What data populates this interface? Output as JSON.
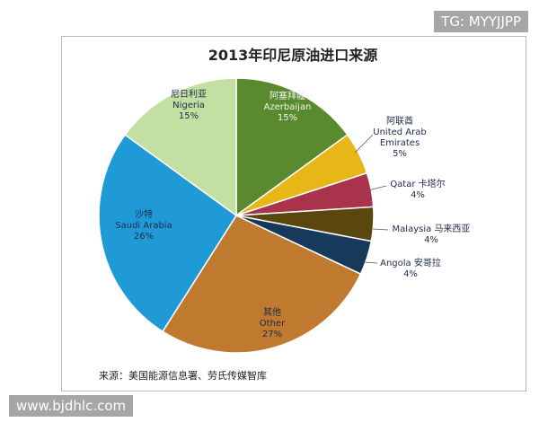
{
  "chart_data": {
    "type": "pie",
    "title": "2013年印尼原油进口来源",
    "categories": [
      "Azerbaijan",
      "United Arab Emirates",
      "Qatar",
      "Malaysia",
      "Angola",
      "Other",
      "Saudi Arabia",
      "Nigeria"
    ],
    "categories_zh": [
      "阿塞拜疆",
      "阿联酋",
      "卡塔尔",
      "马来西亚",
      "安哥拉",
      "其他",
      "沙特",
      "尼日利亚"
    ],
    "values": [
      15,
      5,
      4,
      4,
      4,
      27,
      26,
      15
    ],
    "value_labels": [
      "15%",
      "5%",
      "4%",
      "4%",
      "4%",
      "27%",
      "26%",
      "15%"
    ],
    "colors": [
      "#5a8a2e",
      "#e6b716",
      "#a8334a",
      "#5a470e",
      "#173a5a",
      "#bf7a2f",
      "#1f9ad6",
      "#c4dfa2"
    ],
    "source": "来源：美国能源信息署、劳氏传媒智库"
  },
  "watermarks": {
    "top": "TG: MYYJJPP",
    "bottom": "www.bjdhlc.com"
  }
}
